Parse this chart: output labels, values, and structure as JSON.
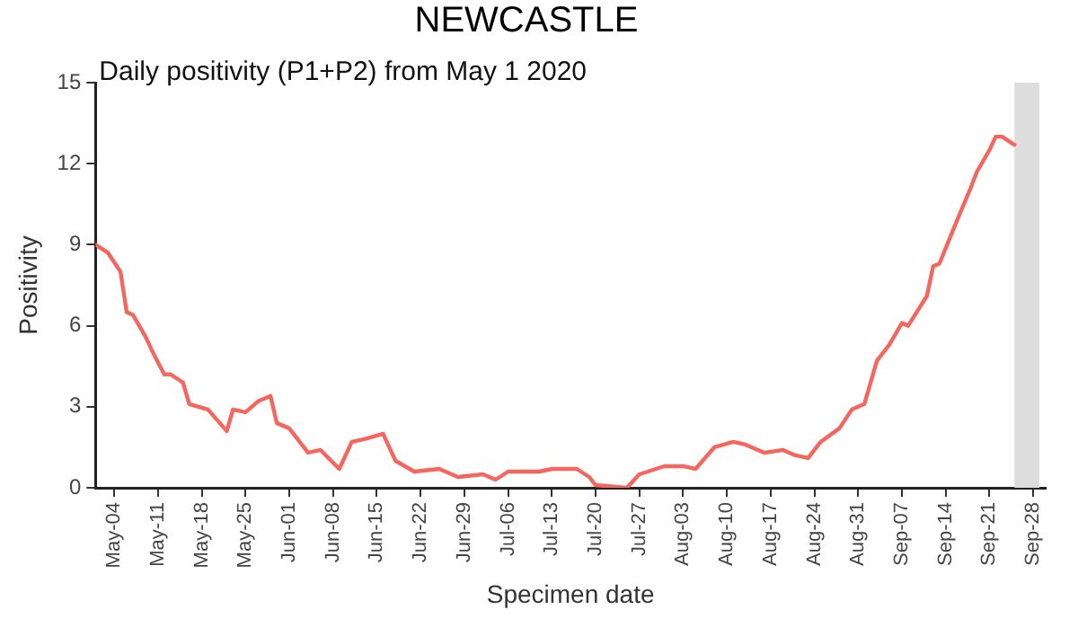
{
  "chart_data": {
    "type": "line",
    "title": "NEWCASTLE",
    "subtitle": "Daily positivity (P1+P2) from May 1 2020",
    "xlabel": "Specimen date",
    "ylabel": "Positivity",
    "x": [
      "2020-05-01",
      "2020-05-03",
      "2020-05-05",
      "2020-05-06",
      "2020-05-07",
      "2020-05-09",
      "2020-05-10",
      "2020-05-12",
      "2020-05-13",
      "2020-05-15",
      "2020-05-16",
      "2020-05-19",
      "2020-05-22",
      "2020-05-23",
      "2020-05-25",
      "2020-05-27",
      "2020-05-29",
      "2020-05-30",
      "2020-06-01",
      "2020-06-04",
      "2020-06-06",
      "2020-06-09",
      "2020-06-11",
      "2020-06-13",
      "2020-06-16",
      "2020-06-18",
      "2020-06-21",
      "2020-06-25",
      "2020-06-28",
      "2020-07-02",
      "2020-07-04",
      "2020-07-06",
      "2020-07-11",
      "2020-07-13",
      "2020-07-17",
      "2020-07-19",
      "2020-07-20",
      "2020-07-25",
      "2020-07-27",
      "2020-07-31",
      "2020-08-03",
      "2020-08-05",
      "2020-08-08",
      "2020-08-11",
      "2020-08-13",
      "2020-08-16",
      "2020-08-19",
      "2020-08-21",
      "2020-08-23",
      "2020-08-25",
      "2020-08-28",
      "2020-08-30",
      "2020-09-01",
      "2020-09-03",
      "2020-09-05",
      "2020-09-07",
      "2020-09-08",
      "2020-09-11",
      "2020-09-12",
      "2020-09-13",
      "2020-09-16",
      "2020-09-18",
      "2020-09-19",
      "2020-09-21",
      "2020-09-22",
      "2020-09-23",
      "2020-09-25"
    ],
    "series": [
      {
        "color": "#f4665e",
        "values": [
          9.0,
          8.7,
          8.0,
          6.5,
          6.4,
          5.6,
          5.1,
          4.2,
          4.2,
          3.9,
          3.1,
          2.9,
          2.1,
          2.9,
          2.8,
          3.2,
          3.4,
          2.4,
          2.2,
          1.3,
          1.4,
          0.7,
          1.7,
          1.8,
          2.0,
          1.0,
          0.6,
          0.7,
          0.4,
          0.5,
          0.3,
          0.6,
          0.6,
          0.7,
          0.7,
          0.4,
          0.1,
          0.0,
          0.5,
          0.8,
          0.8,
          0.7,
          1.5,
          1.7,
          1.6,
          1.3,
          1.4,
          1.2,
          1.1,
          1.7,
          2.2,
          2.9,
          3.1,
          4.7,
          5.3,
          6.1,
          6.0,
          7.1,
          8.2,
          8.3,
          10.0,
          11.1,
          11.7,
          12.5,
          13.0,
          13.0,
          12.7
        ]
      }
    ],
    "xlim": [
      "2020-05-01",
      "2020-09-30"
    ],
    "xticks": [
      {
        "value": "2020-05-04",
        "label": "May-04"
      },
      {
        "value": "2020-05-11",
        "label": "May-11"
      },
      {
        "value": "2020-05-18",
        "label": "May-18"
      },
      {
        "value": "2020-05-25",
        "label": "May-25"
      },
      {
        "value": "2020-06-01",
        "label": "Jun-01"
      },
      {
        "value": "2020-06-08",
        "label": "Jun-08"
      },
      {
        "value": "2020-06-15",
        "label": "Jun-15"
      },
      {
        "value": "2020-06-22",
        "label": "Jun-22"
      },
      {
        "value": "2020-06-29",
        "label": "Jun-29"
      },
      {
        "value": "2020-07-06",
        "label": "Jul-06"
      },
      {
        "value": "2020-07-13",
        "label": "Jul-13"
      },
      {
        "value": "2020-07-20",
        "label": "Jul-20"
      },
      {
        "value": "2020-07-27",
        "label": "Jul-27"
      },
      {
        "value": "2020-08-03",
        "label": "Aug-03"
      },
      {
        "value": "2020-08-10",
        "label": "Aug-10"
      },
      {
        "value": "2020-08-17",
        "label": "Aug-17"
      },
      {
        "value": "2020-08-24",
        "label": "Aug-24"
      },
      {
        "value": "2020-08-31",
        "label": "Aug-31"
      },
      {
        "value": "2020-09-07",
        "label": "Sep-07"
      },
      {
        "value": "2020-09-14",
        "label": "Sep-14"
      },
      {
        "value": "2020-09-21",
        "label": "Sep-21"
      },
      {
        "value": "2020-09-28",
        "label": "Sep-28"
      }
    ],
    "ylim": [
      0,
      15
    ],
    "yticks": [
      0,
      3,
      6,
      9,
      12,
      15
    ],
    "bands": [
      {
        "axis": "x",
        "from": "2020-09-25",
        "to": "2020-09-29",
        "color": "#dddddd"
      }
    ],
    "grid": false,
    "legend": false,
    "marker": "none",
    "line_style": "solid"
  }
}
